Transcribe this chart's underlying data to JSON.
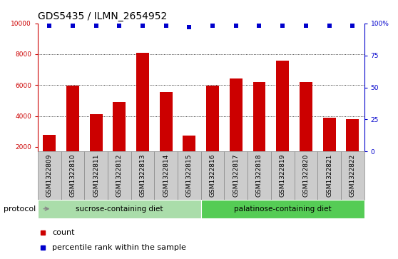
{
  "title": "GDS5435 / ILMN_2654952",
  "samples": [
    "GSM1322809",
    "GSM1322810",
    "GSM1322811",
    "GSM1322812",
    "GSM1322813",
    "GSM1322814",
    "GSM1322815",
    "GSM1322816",
    "GSM1322817",
    "GSM1322818",
    "GSM1322819",
    "GSM1322820",
    "GSM1322821",
    "GSM1322822"
  ],
  "counts": [
    2800,
    5950,
    4100,
    4900,
    8100,
    5550,
    2750,
    5950,
    6450,
    6200,
    7600,
    6200,
    3900,
    3800
  ],
  "percentile_ranks": [
    98,
    98,
    98,
    98,
    98,
    98,
    97,
    98,
    98,
    98,
    98,
    98,
    98,
    98
  ],
  "bar_color": "#cc0000",
  "percentile_color": "#0000cc",
  "ylim_left": [
    1700,
    10000
  ],
  "ylim_right": [
    0,
    100
  ],
  "yticks_left": [
    2000,
    4000,
    6000,
    8000,
    10000
  ],
  "ytick_labels_left": [
    "2000",
    "4000",
    "6000",
    "8000",
    "10000"
  ],
  "yticks_right": [
    0,
    25,
    50,
    75,
    100
  ],
  "ytick_labels_right": [
    "0",
    "25",
    "50",
    "75",
    "100%"
  ],
  "grid_values": [
    4000,
    6000,
    8000
  ],
  "sucrose_indices": [
    0,
    1,
    2,
    3,
    4,
    5,
    6
  ],
  "palatinose_indices": [
    7,
    8,
    9,
    10,
    11,
    12,
    13
  ],
  "sucrose_label": "sucrose-containing diet",
  "palatinose_label": "palatinose-containing diet",
  "protocol_label": "protocol",
  "legend_count_label": "count",
  "legend_percentile_label": "percentile rank within the sample",
  "title_fontsize": 10,
  "tick_fontsize": 6.5,
  "label_fontsize": 8,
  "bar_width": 0.55,
  "bg_color_plot": "#ffffff",
  "bg_color_sucrose": "#aaddaa",
  "bg_color_palatinose": "#55cc55",
  "xticklabel_bg": "#cccccc",
  "xticklabel_border": "#888888"
}
